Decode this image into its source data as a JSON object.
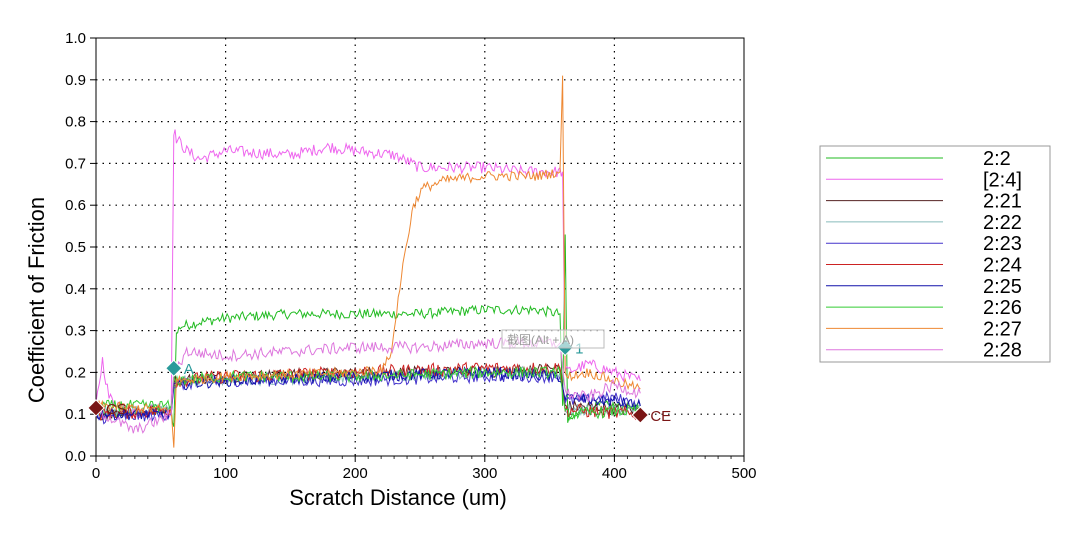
{
  "chart_data": {
    "type": "line",
    "xlabel": "Scratch Distance (um)",
    "ylabel": "Coefficient of Friction",
    "xlim": [
      0,
      500
    ],
    "ylim": [
      0,
      1.0
    ],
    "x_ticks": [
      "0",
      "100",
      "200",
      "300",
      "400",
      "500"
    ],
    "y_ticks": [
      "0.0",
      "0.1",
      "0.2",
      "0.3",
      "0.4",
      "0.5",
      "0.6",
      "0.7",
      "0.8",
      "0.9",
      "1.0"
    ],
    "grid": true,
    "grid_style": "dotted",
    "legend_position": "right",
    "series": [
      {
        "name": "2:2",
        "color": "#22bb22",
        "noise": 0.012,
        "points": [
          [
            0,
            0.1
          ],
          [
            58,
            0.11
          ],
          [
            60,
            0.07
          ],
          [
            62,
            0.29
          ],
          [
            65,
            0.31
          ],
          [
            80,
            0.32
          ],
          [
            100,
            0.33
          ],
          [
            150,
            0.34
          ],
          [
            200,
            0.34
          ],
          [
            250,
            0.34
          ],
          [
            300,
            0.35
          ],
          [
            340,
            0.35
          ],
          [
            358,
            0.34
          ],
          [
            360,
            0.12
          ],
          [
            362,
            0.53
          ],
          [
            364,
            0.08
          ],
          [
            380,
            0.12
          ],
          [
            400,
            0.12
          ],
          [
            420,
            0.12
          ]
        ]
      },
      {
        "name": "[2:4]",
        "color": "#ee66ee",
        "noise": 0.014,
        "points": [
          [
            0,
            0.12
          ],
          [
            5,
            0.23
          ],
          [
            10,
            0.14
          ],
          [
            30,
            0.1
          ],
          [
            50,
            0.12
          ],
          [
            58,
            0.11
          ],
          [
            60,
            0.78
          ],
          [
            62,
            0.76
          ],
          [
            70,
            0.73
          ],
          [
            80,
            0.71
          ],
          [
            100,
            0.73
          ],
          [
            150,
            0.72
          ],
          [
            180,
            0.74
          ],
          [
            200,
            0.73
          ],
          [
            230,
            0.72
          ],
          [
            250,
            0.69
          ],
          [
            300,
            0.69
          ],
          [
            330,
            0.68
          ],
          [
            358,
            0.68
          ],
          [
            360,
            0.68
          ],
          [
            362,
            0.2
          ],
          [
            380,
            0.22
          ],
          [
            400,
            0.2
          ],
          [
            420,
            0.18
          ]
        ]
      },
      {
        "name": "2:21",
        "color": "#552222",
        "noise": 0.014,
        "points": [
          [
            0,
            0.1
          ],
          [
            58,
            0.11
          ],
          [
            60,
            0.18
          ],
          [
            100,
            0.19
          ],
          [
            200,
            0.2
          ],
          [
            300,
            0.2
          ],
          [
            358,
            0.21
          ],
          [
            362,
            0.12
          ],
          [
            420,
            0.11
          ]
        ]
      },
      {
        "name": "2:22",
        "color": "#88bbbb",
        "noise": 0.014,
        "points": [
          [
            0,
            0.11
          ],
          [
            58,
            0.11
          ],
          [
            60,
            0.18
          ],
          [
            100,
            0.18
          ],
          [
            200,
            0.19
          ],
          [
            300,
            0.2
          ],
          [
            358,
            0.2
          ],
          [
            362,
            0.11
          ],
          [
            420,
            0.11
          ]
        ]
      },
      {
        "name": "2:23",
        "color": "#4433cc",
        "noise": 0.014,
        "points": [
          [
            0,
            0.09
          ],
          [
            58,
            0.1
          ],
          [
            60,
            0.17
          ],
          [
            100,
            0.18
          ],
          [
            200,
            0.18
          ],
          [
            300,
            0.19
          ],
          [
            358,
            0.19
          ],
          [
            362,
            0.13
          ],
          [
            400,
            0.14
          ],
          [
            420,
            0.12
          ]
        ]
      },
      {
        "name": "2:24",
        "color": "#cc2222",
        "noise": 0.016,
        "points": [
          [
            0,
            0.1
          ],
          [
            58,
            0.11
          ],
          [
            60,
            0.18
          ],
          [
            100,
            0.19
          ],
          [
            200,
            0.2
          ],
          [
            300,
            0.21
          ],
          [
            358,
            0.21
          ],
          [
            362,
            0.11
          ],
          [
            420,
            0.1
          ]
        ]
      },
      {
        "name": "2:25",
        "color": "#1111aa",
        "noise": 0.014,
        "points": [
          [
            0,
            0.1
          ],
          [
            58,
            0.1
          ],
          [
            60,
            0.17
          ],
          [
            100,
            0.18
          ],
          [
            200,
            0.19
          ],
          [
            300,
            0.2
          ],
          [
            358,
            0.19
          ],
          [
            362,
            0.14
          ],
          [
            400,
            0.13
          ],
          [
            420,
            0.12
          ]
        ]
      },
      {
        "name": "2:26",
        "color": "#33cc33",
        "noise": 0.014,
        "points": [
          [
            0,
            0.12
          ],
          [
            58,
            0.12
          ],
          [
            60,
            0.18
          ],
          [
            100,
            0.19
          ],
          [
            200,
            0.19
          ],
          [
            300,
            0.2
          ],
          [
            358,
            0.2
          ],
          [
            362,
            0.1
          ],
          [
            420,
            0.11
          ]
        ]
      },
      {
        "name": "2:27",
        "color": "#ee8833",
        "noise": 0.012,
        "points": [
          [
            0,
            0.12
          ],
          [
            58,
            0.11
          ],
          [
            60,
            0.02
          ],
          [
            62,
            0.18
          ],
          [
            100,
            0.19
          ],
          [
            200,
            0.2
          ],
          [
            222,
            0.21
          ],
          [
            228,
            0.25
          ],
          [
            232,
            0.35
          ],
          [
            238,
            0.48
          ],
          [
            245,
            0.6
          ],
          [
            252,
            0.64
          ],
          [
            270,
            0.66
          ],
          [
            300,
            0.67
          ],
          [
            340,
            0.67
          ],
          [
            358,
            0.68
          ],
          [
            360,
            0.91
          ],
          [
            362,
            0.19
          ],
          [
            380,
            0.2
          ],
          [
            400,
            0.18
          ],
          [
            420,
            0.16
          ]
        ]
      },
      {
        "name": "2:28",
        "color": "#dd77dd",
        "noise": 0.014,
        "points": [
          [
            0,
            0.11
          ],
          [
            30,
            0.06
          ],
          [
            58,
            0.1
          ],
          [
            60,
            0.2
          ],
          [
            70,
            0.25
          ],
          [
            100,
            0.24
          ],
          [
            150,
            0.25
          ],
          [
            200,
            0.26
          ],
          [
            250,
            0.26
          ],
          [
            300,
            0.27
          ],
          [
            358,
            0.27
          ],
          [
            362,
            0.15
          ],
          [
            380,
            0.14
          ],
          [
            400,
            0.17
          ],
          [
            420,
            0.15
          ]
        ]
      }
    ],
    "markers": [
      {
        "label": "CS",
        "x": 0,
        "y": 0.115,
        "color": "#7a1515"
      },
      {
        "label": "A",
        "x": 60,
        "y": 0.21,
        "color": "#2a9a9a"
      },
      {
        "label": "1",
        "x": 362,
        "y": 0.26,
        "color": "#2a9a9a"
      },
      {
        "label": "CE",
        "x": 420,
        "y": 0.098,
        "color": "#7a1515"
      }
    ],
    "watermark_text": "截图(Alt + A)"
  }
}
